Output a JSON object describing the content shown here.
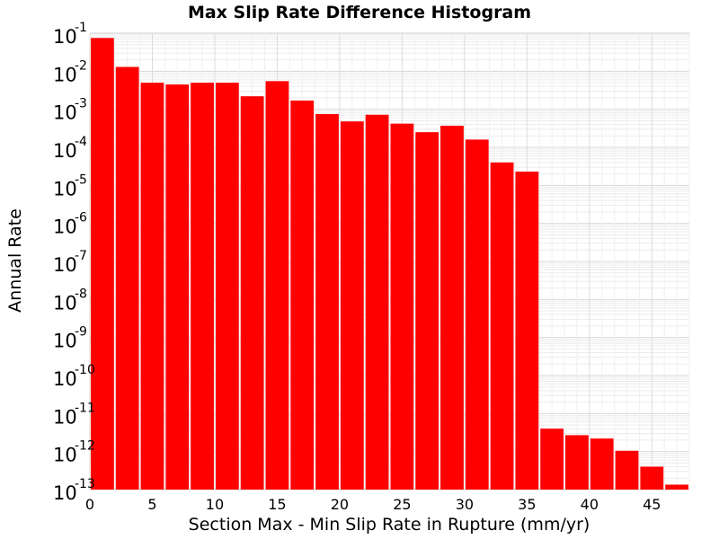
{
  "chart_data": {
    "type": "bar",
    "title": "Max Slip Rate Difference Histogram",
    "xlabel": "Section Max - Min Slip Rate in Rupture (mm/yr)",
    "ylabel": "Annual Rate",
    "y_scale": "log",
    "ylim": [
      1e-13,
      0.1
    ],
    "xlim": [
      0,
      48
    ],
    "bin_width": 2,
    "x_ticks": [
      "0",
      "5",
      "10",
      "15",
      "20",
      "25",
      "30",
      "35",
      "40",
      "45"
    ],
    "y_tick_base": "10",
    "y_tick_exponents": [
      "-1",
      "-2",
      "-3",
      "-4",
      "-5",
      "-6",
      "-7",
      "-8",
      "-9",
      "-10",
      "-11",
      "-12",
      "-13"
    ],
    "bins": [
      {
        "x": 1,
        "value": 0.075
      },
      {
        "x": 3,
        "value": 0.013
      },
      {
        "x": 5,
        "value": 0.005
      },
      {
        "x": 7,
        "value": 0.0045
      },
      {
        "x": 9,
        "value": 0.005
      },
      {
        "x": 11,
        "value": 0.005
      },
      {
        "x": 13,
        "value": 0.0022
      },
      {
        "x": 15,
        "value": 0.0055
      },
      {
        "x": 17,
        "value": 0.0017
      },
      {
        "x": 19,
        "value": 0.00075
      },
      {
        "x": 21,
        "value": 0.00048
      },
      {
        "x": 23,
        "value": 0.00072
      },
      {
        "x": 25,
        "value": 0.00042
      },
      {
        "x": 27,
        "value": 0.00025
      },
      {
        "x": 29,
        "value": 0.00037
      },
      {
        "x": 31,
        "value": 0.00016
      },
      {
        "x": 33,
        "value": 4e-05
      },
      {
        "x": 35,
        "value": 2.3e-05
      },
      {
        "x": 37,
        "value": 4e-12
      },
      {
        "x": 39,
        "value": 2.7e-12
      },
      {
        "x": 41,
        "value": 2.2e-12
      },
      {
        "x": 43,
        "value": 1.05e-12
      },
      {
        "x": 45,
        "value": 4e-13
      },
      {
        "x": 47,
        "value": 1.35e-13
      }
    ],
    "bar_color": "#ff0000",
    "grid": true,
    "legend": "none"
  }
}
